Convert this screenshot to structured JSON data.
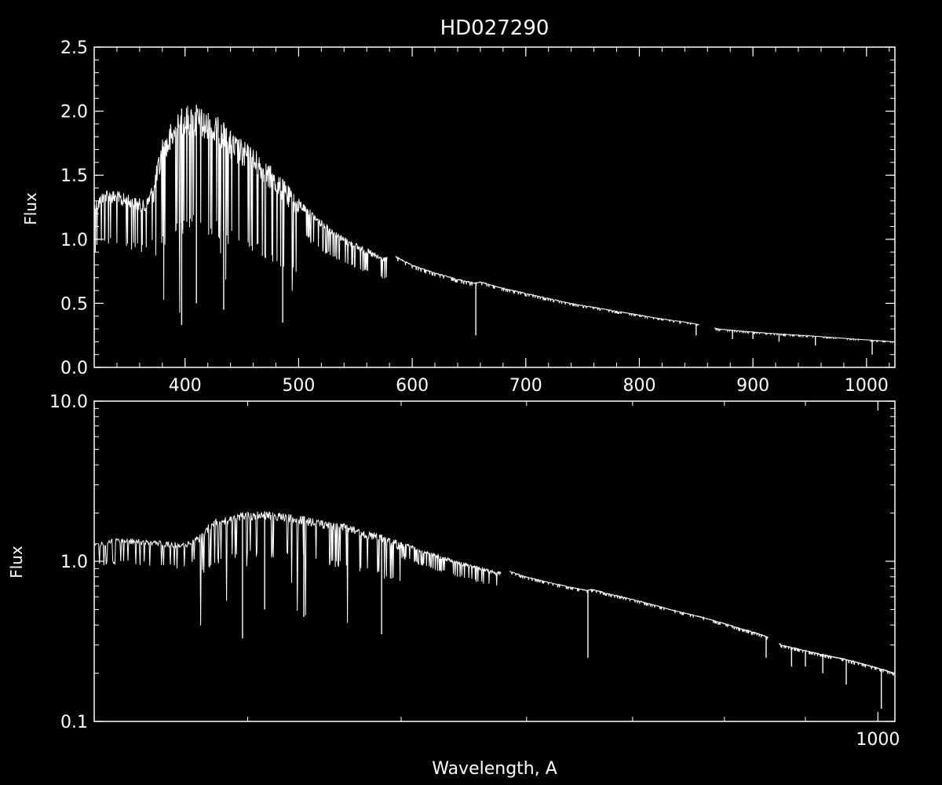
{
  "colors": {
    "background": "#000000",
    "foreground": "#ffffff"
  },
  "figure": {
    "title": "HD027290",
    "xlabel": "Wavelength, A"
  },
  "chart_data": [
    {
      "type": "line",
      "title": "HD027290",
      "xlabel": "",
      "ylabel": "Flux",
      "xlim": [
        320,
        1025
      ],
      "ylim": [
        0.0,
        2.5
      ],
      "xscale": "linear",
      "yscale": "linear",
      "x_ticks": [
        400,
        500,
        600,
        700,
        800,
        900,
        1000
      ],
      "x_tick_labels": [
        "400",
        "500",
        "600",
        "700",
        "800",
        "900",
        "1000"
      ],
      "y_ticks": [
        0.0,
        0.5,
        1.0,
        1.5,
        2.0,
        2.5
      ],
      "y_tick_labels": [
        "0.0",
        "0.5",
        "1.0",
        "1.5",
        "2.0",
        "2.5"
      ],
      "grid": false,
      "legend": "none",
      "series": [
        {
          "x": [
            320,
            330,
            340,
            350,
            360,
            365,
            372,
            380,
            390,
            400,
            410,
            420,
            430,
            440,
            450,
            460,
            470,
            480,
            490,
            500,
            520,
            540,
            560,
            575,
            585,
            600,
            620,
            640,
            655,
            660,
            680,
            700,
            720,
            740,
            760,
            780,
            800,
            820,
            840,
            850,
            870,
            890,
            910,
            930,
            950,
            970,
            990,
            1010,
            1025
          ],
          "y": [
            1.3,
            1.4,
            1.38,
            1.35,
            1.32,
            1.3,
            1.45,
            1.8,
            1.95,
            2.05,
            2.05,
            2.0,
            1.95,
            1.85,
            1.78,
            1.72,
            1.63,
            1.53,
            1.43,
            1.32,
            1.15,
            1.02,
            0.93,
            0.86,
            0.87,
            0.8,
            0.74,
            0.69,
            0.66,
            0.67,
            0.62,
            0.58,
            0.54,
            0.5,
            0.47,
            0.44,
            0.41,
            0.38,
            0.355,
            0.34,
            0.3,
            0.285,
            0.27,
            0.258,
            0.247,
            0.235,
            0.222,
            0.21,
            0.2
          ]
        }
      ],
      "absorption_lines": [
        {
          "x": 397,
          "y_min": 0.33
        },
        {
          "x": 410,
          "y_min": 0.5
        },
        {
          "x": 434,
          "y_min": 0.45
        },
        {
          "x": 486,
          "y_min": 0.35
        },
        {
          "x": 656,
          "y_min": 0.25
        },
        {
          "x": 850,
          "y_min": 0.25
        },
        {
          "x": 882,
          "y_min": 0.22
        },
        {
          "x": 900,
          "y_min": 0.22
        },
        {
          "x": 923,
          "y_min": 0.2
        },
        {
          "x": 955,
          "y_min": 0.17
        },
        {
          "x": 1005,
          "y_min": 0.1
        }
      ]
    },
    {
      "type": "line",
      "xlabel": "Wavelength, A",
      "ylabel": "Flux",
      "xlim": [
        320,
        1025
      ],
      "ylim": [
        0.1,
        10.0
      ],
      "xscale": "log",
      "yscale": "log",
      "x_ticks": [
        1000
      ],
      "x_tick_labels": [
        "1000"
      ],
      "y_ticks": [
        0.1,
        1.0,
        10.0
      ],
      "y_tick_labels": [
        "0.1",
        "1.0",
        "10.0"
      ],
      "grid": false,
      "legend": "none",
      "series": [
        {
          "x": [
            320,
            330,
            340,
            350,
            360,
            365,
            372,
            380,
            390,
            400,
            410,
            420,
            430,
            440,
            450,
            460,
            470,
            480,
            490,
            500,
            520,
            540,
            560,
            575,
            585,
            600,
            620,
            640,
            655,
            660,
            680,
            700,
            720,
            740,
            760,
            780,
            800,
            820,
            840,
            850,
            870,
            890,
            910,
            930,
            950,
            970,
            990,
            1010,
            1025
          ],
          "y": [
            1.3,
            1.4,
            1.38,
            1.35,
            1.32,
            1.3,
            1.45,
            1.8,
            1.95,
            2.05,
            2.05,
            2.0,
            1.95,
            1.85,
            1.78,
            1.72,
            1.63,
            1.53,
            1.43,
            1.32,
            1.15,
            1.02,
            0.93,
            0.86,
            0.87,
            0.8,
            0.74,
            0.69,
            0.66,
            0.67,
            0.62,
            0.58,
            0.54,
            0.5,
            0.47,
            0.44,
            0.41,
            0.38,
            0.355,
            0.34,
            0.3,
            0.285,
            0.27,
            0.258,
            0.247,
            0.235,
            0.222,
            0.21,
            0.2
          ]
        }
      ],
      "absorption_lines": [
        {
          "x": 397,
          "y_min": 0.33
        },
        {
          "x": 410,
          "y_min": 0.5
        },
        {
          "x": 434,
          "y_min": 0.45
        },
        {
          "x": 486,
          "y_min": 0.35
        },
        {
          "x": 656,
          "y_min": 0.25
        },
        {
          "x": 850,
          "y_min": 0.25
        },
        {
          "x": 882,
          "y_min": 0.22
        },
        {
          "x": 900,
          "y_min": 0.22
        },
        {
          "x": 923,
          "y_min": 0.2
        },
        {
          "x": 955,
          "y_min": 0.17
        },
        {
          "x": 1005,
          "y_min": 0.12
        }
      ]
    }
  ]
}
